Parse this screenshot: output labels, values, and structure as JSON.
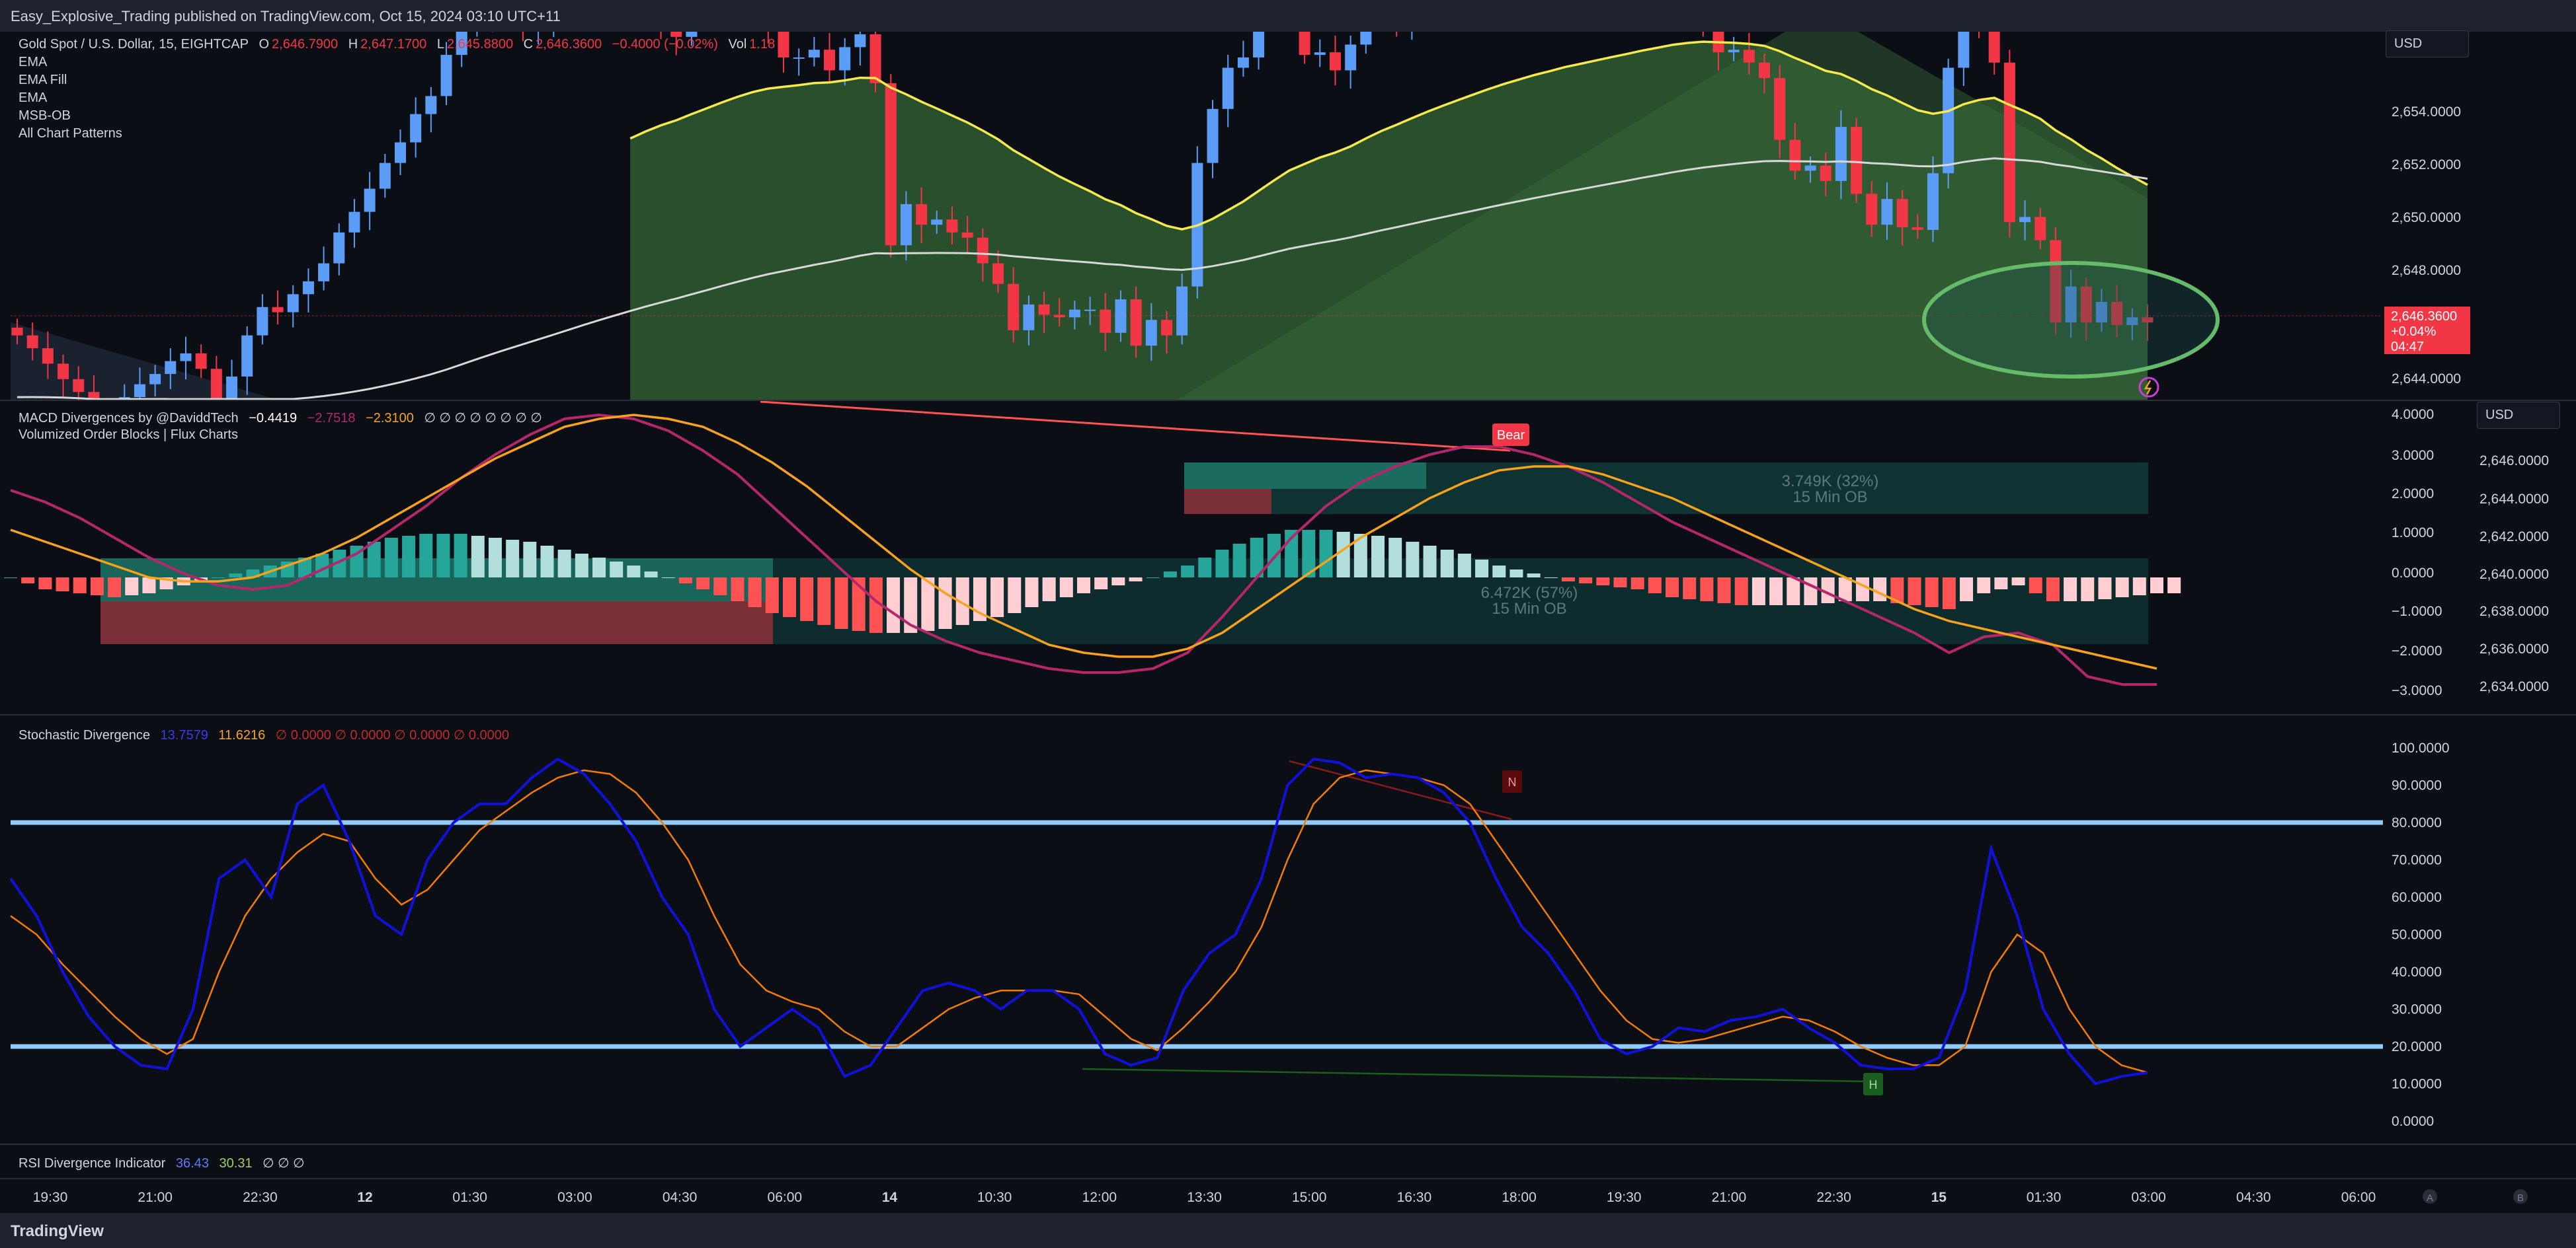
{
  "header": {
    "publisher": "Easy_Explosive_Trading published on TradingView.com, Oct 15, 2024 03:10 UTC+11"
  },
  "footer": {
    "brand": "TradingView"
  },
  "main_pane": {
    "symbol": "Gold Spot / U.S. Dollar, 15, EIGHTCAP",
    "ohlc": {
      "o_label": "O",
      "o": "2,646.7900",
      "h_label": "H",
      "h": "2,647.1700",
      "l_label": "L",
      "l": "2,645.8800",
      "c_label": "C",
      "c": "2,646.3600",
      "chg": "−0.4000 (−0.02%)"
    },
    "vol_label": "Vol",
    "vol": "1.18",
    "indicators": [
      "EMA",
      "EMA Fill",
      "EMA",
      "MSB-OB",
      "All Chart Patterns"
    ],
    "currency": "USD",
    "price_ticks": [
      "2,654.0000",
      "2,652.0000",
      "2,650.0000",
      "2,648.0000",
      "2,644.0000"
    ],
    "last_price": {
      "price": "2,646.3600",
      "change": "+0.04%",
      "countdown": "04:47"
    }
  },
  "macd_pane": {
    "title": "MACD Divergences by @DaviddTech",
    "v1": "−0.4419",
    "v2": "−2.7518",
    "v3": "−2.3100",
    "extras": "∅ ∅ ∅ ∅ ∅ ∅ ∅ ∅",
    "subtitle": "Volumized Order Blocks | Flux Charts",
    "currency": "USD",
    "macd_ticks": [
      "4.0000",
      "3.0000",
      "2.0000",
      "1.0000",
      "0.0000",
      "−1.0000",
      "−2.0000",
      "−3.0000"
    ],
    "price_ticks": [
      "2,646.0000",
      "2,644.0000",
      "2,642.0000",
      "2,640.0000",
      "2,638.0000",
      "2,636.0000",
      "2,634.0000"
    ],
    "bear_label": "Bear",
    "ob1": {
      "vol": "3.749K (32%)",
      "tf": "15 Min OB"
    },
    "ob2": {
      "vol": "6.472K (57%)",
      "tf": "15 Min OB"
    }
  },
  "stoch_pane": {
    "title": "Stochastic Divergence",
    "k": "13.7579",
    "d": "11.6216",
    "extras": "∅ 0.0000 ∅ 0.0000 ∅ 0.0000 ∅ 0.0000",
    "ticks": [
      "100.0000",
      "90.0000",
      "80.0000",
      "70.0000",
      "60.0000",
      "50.0000",
      "40.0000",
      "30.0000",
      "20.0000",
      "10.0000",
      "0.0000"
    ],
    "n_label": "N",
    "h_label": "H"
  },
  "rsi_pane": {
    "title": "RSI Divergence Indicator",
    "v1": "36.43",
    "v2": "30.31",
    "extras": "∅ ∅ ∅"
  },
  "time_axis": {
    "labels": [
      "19:30",
      "21:00",
      "22:30",
      "12",
      "01:30",
      "03:00",
      "04:30",
      "06:00",
      "14",
      "10:30",
      "12:00",
      "13:30",
      "15:00",
      "16:30",
      "18:00",
      "19:30",
      "21:00",
      "22:30",
      "15",
      "01:30",
      "03:00",
      "04:30",
      "06:00"
    ],
    "btn_a": "A",
    "btn_b": "B"
  },
  "colors": {
    "up": "#5b9cf6",
    "down": "#f23645",
    "ema_fast": "#f5e94b",
    "ema_slow": "#d8d8d8",
    "fill": "#2f5a30",
    "macd": "#b5266b",
    "signal": "#f7a21b",
    "hist_up": "#26a69a",
    "hist_up_light": "#b2dfdb",
    "hist_dn": "#ff5252",
    "hist_dn_light": "#ffcdd2",
    "stoch_k": "#1111dd",
    "stoch_d": "#f57c00",
    "band": "#90caf9"
  },
  "chart_data": [
    {
      "type": "candlestick",
      "title": "Gold Spot / U.S. Dollar, 15, EIGHTCAP",
      "ylim": [
        2643.2,
        2657.5
      ],
      "close": [
        2645.7,
        2645.2,
        2644.6,
        2644.0,
        2643.5,
        2642.8,
        2642.5,
        2643.3,
        2643.8,
        2644.2,
        2644.7,
        2645.0,
        2644.4,
        2642.7,
        2644.1,
        2645.7,
        2646.8,
        2646.6,
        2647.3,
        2647.8,
        2648.5,
        2649.7,
        2650.5,
        2651.4,
        2652.4,
        2653.2,
        2654.3,
        2655.0,
        2656.6,
        2657.9,
        2658.3,
        2658.2,
        2658.0,
        2657.6,
        2658.0,
        2658.2,
        2658.4,
        2658.8,
        2658.5,
        2658.3,
        2658.2,
        2658.1,
        2657.8,
        2657.3,
        2658.2,
        2658.3,
        2658.6,
        2658.5,
        2658.2,
        2657.5,
        2656.5,
        2656.5,
        2656.8,
        2656.0,
        2656.9,
        2657.4,
        2655.5,
        2649.2,
        2650.8,
        2650.0,
        2650.2,
        2649.7,
        2649.5,
        2648.5,
        2647.7,
        2645.9,
        2646.9,
        2646.5,
        2646.4,
        2646.7,
        2646.7,
        2645.8,
        2647.1,
        2645.3,
        2646.3,
        2645.7,
        2647.6,
        2652.4,
        2654.5,
        2656.1,
        2656.5,
        2658.1,
        2658.4,
        2658.5,
        2656.6,
        2656.7,
        2656.0,
        2657.0,
        2658.4,
        2658.4,
        2657.9,
        2658.4,
        2658.5,
        2658.4,
        2658.5,
        2658.6,
        2658.8,
        2658.7,
        2658.6,
        2658.7,
        2658.4,
        2658.8,
        2658.3,
        2658.5,
        2658.6,
        2658.7,
        2658.9,
        2658.7,
        2658.9,
        2658.3,
        2657.9,
        2656.7,
        2656.8,
        2656.3,
        2655.7,
        2653.3,
        2652.1,
        2652.3,
        2651.7,
        2653.8,
        2651.2,
        2650.0,
        2651.0,
        2649.9,
        2649.8,
        2652.0,
        2656.1,
        2659.1,
        2657.6,
        2656.3,
        2650.1,
        2650.3,
        2649.4,
        2646.2,
        2647.6,
        2646.2,
        2647.0,
        2646.1,
        2646.4,
        2646.2
      ]
    },
    {
      "type": "line",
      "title": "MACD Divergences by @DaviddTech",
      "ylim": [
        -3.6,
        4.3
      ],
      "series": [
        {
          "values": [
            2.2,
            1.9,
            1.5,
            1.0,
            0.5,
            0.1,
            -0.2,
            -0.3,
            -0.2,
            0.2,
            0.6,
            1.2,
            1.8,
            2.5,
            3.1,
            3.6,
            4.0,
            4.1,
            4.0,
            3.7,
            3.2,
            2.6,
            1.8,
            1.0,
            0.2,
            -0.6,
            -1.2,
            -1.6,
            -1.9,
            -2.1,
            -2.3,
            -2.4,
            -2.4,
            -2.3,
            -1.9,
            -1.0,
            0.0,
            1.0,
            1.8,
            2.4,
            2.8,
            3.1,
            3.3,
            3.3,
            3.1,
            2.8,
            2.4,
            1.9,
            1.4,
            1.0,
            0.6,
            0.2,
            -0.2,
            -0.6,
            -1.0,
            -1.4,
            -1.9,
            -1.5,
            -1.4,
            -1.7,
            -2.5,
            -2.7,
            -2.7
          ]
        },
        {
          "values": [
            1.2,
            0.9,
            0.6,
            0.3,
            0.0,
            -0.1,
            -0.1,
            0.0,
            0.3,
            0.6,
            1.0,
            1.5,
            2.0,
            2.5,
            3.0,
            3.4,
            3.8,
            4.0,
            4.1,
            4.0,
            3.8,
            3.4,
            2.9,
            2.3,
            1.6,
            0.9,
            0.2,
            -0.4,
            -0.9,
            -1.3,
            -1.7,
            -1.9,
            -2.0,
            -2.0,
            -1.8,
            -1.4,
            -0.8,
            -0.2,
            0.4,
            1.0,
            1.5,
            2.0,
            2.4,
            2.7,
            2.8,
            2.8,
            2.6,
            2.3,
            2.0,
            1.6,
            1.2,
            0.8,
            0.4,
            0.0,
            -0.4,
            -0.8,
            -1.1,
            -1.3,
            -1.5,
            -1.7,
            -1.9,
            -2.1,
            -2.3
          ]
        }
      ],
      "histogram": [
        0.0,
        -0.3,
        -0.4,
        -0.5,
        -0.4,
        -0.2,
        0.0,
        0.2,
        0.4,
        0.6,
        0.8,
        1.0,
        1.1,
        1.1,
        1.0,
        0.9,
        0.7,
        0.5,
        0.3,
        0.0,
        -0.3,
        -0.6,
        -0.9,
        -1.1,
        -1.3,
        -1.4,
        -1.4,
        -1.3,
        -1.1,
        -0.9,
        -0.6,
        -0.4,
        -0.2,
        0.0,
        0.3,
        0.7,
        1.0,
        1.2,
        1.2,
        1.1,
        1.0,
        0.8,
        0.6,
        0.3,
        0.1,
        -0.1,
        -0.2,
        -0.3,
        -0.5,
        -0.6,
        -0.7,
        -0.7,
        -0.7,
        -0.6,
        -0.6,
        -0.7,
        -0.8,
        -0.4,
        -0.2,
        -0.6,
        -0.6,
        -0.5,
        -0.4
      ]
    },
    {
      "type": "line",
      "title": "Stochastic Divergence",
      "ylim": [
        0,
        100
      ],
      "series": [
        {
          "values": [
            65,
            55,
            40,
            28,
            20,
            15,
            14,
            30,
            65,
            70,
            60,
            85,
            90,
            75,
            55,
            50,
            70,
            80,
            85,
            85,
            92,
            97,
            93,
            85,
            75,
            60,
            50,
            30,
            20,
            25,
            30,
            25,
            12,
            15,
            25,
            35,
            37,
            35,
            30,
            35,
            35,
            30,
            18,
            15,
            17,
            35,
            45,
            50,
            65,
            90,
            97,
            96,
            92,
            93,
            92,
            88,
            80,
            65,
            52,
            45,
            35,
            22,
            18,
            20,
            25,
            24,
            27,
            28,
            30,
            25,
            21,
            15,
            14,
            14,
            17,
            35,
            73,
            55,
            30,
            18,
            10,
            12,
            13
          ]
        },
        {
          "values": [
            55,
            50,
            42,
            35,
            28,
            22,
            18,
            22,
            40,
            55,
            65,
            72,
            77,
            75,
            65,
            58,
            62,
            70,
            78,
            83,
            88,
            92,
            94,
            93,
            88,
            80,
            70,
            55,
            42,
            35,
            32,
            30,
            24,
            20,
            20,
            25,
            30,
            33,
            35,
            35,
            35,
            34,
            28,
            22,
            19,
            25,
            32,
            40,
            52,
            70,
            85,
            92,
            94,
            93,
            92,
            90,
            85,
            75,
            65,
            55,
            45,
            35,
            27,
            22,
            21,
            22,
            24,
            26,
            28,
            27,
            24,
            20,
            17,
            15,
            15,
            20,
            40,
            50,
            45,
            30,
            20,
            15,
            13
          ]
        }
      ]
    }
  ]
}
